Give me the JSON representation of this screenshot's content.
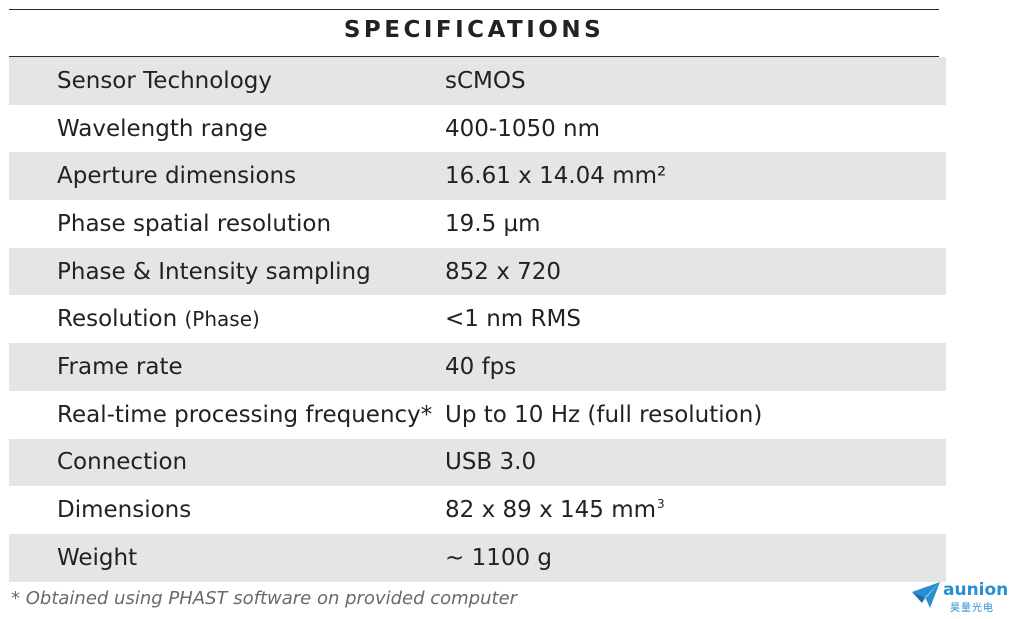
{
  "title": "SPECIFICATIONS",
  "rows": [
    {
      "label": "Sensor Technology",
      "value": "sCMOS"
    },
    {
      "label": "Wavelength range",
      "value": "400-1050 nm"
    },
    {
      "label": "Aperture dimensions",
      "value": "16.61 x 14.04 mm²"
    },
    {
      "label": "Phase spatial resolution",
      "value": "19.5 µm"
    },
    {
      "label": "Phase & Intensity sampling",
      "value": "852 x 720"
    },
    {
      "label": "Resolution",
      "label_note": "(Phase)",
      "value": "<1 nm RMS"
    },
    {
      "label": "Frame rate",
      "value": "40 fps"
    },
    {
      "label": "Real-time processing frequency*",
      "value": "Up to 10 Hz (full resolution)"
    },
    {
      "label": "Connection",
      "value": "USB 3.0"
    },
    {
      "label": "Dimensions",
      "value": "82 x 89 x 145 mm",
      "value_sup": "3"
    },
    {
      "label": "Weight",
      "value": "~ 1100 g"
    }
  ],
  "footnote": "* Obtained using PHAST software on provided computer",
  "logo": {
    "name": "aunion",
    "subtitle": "昊量光电",
    "color": "#2a8fd0",
    "icon": "paper-plane-icon"
  }
}
